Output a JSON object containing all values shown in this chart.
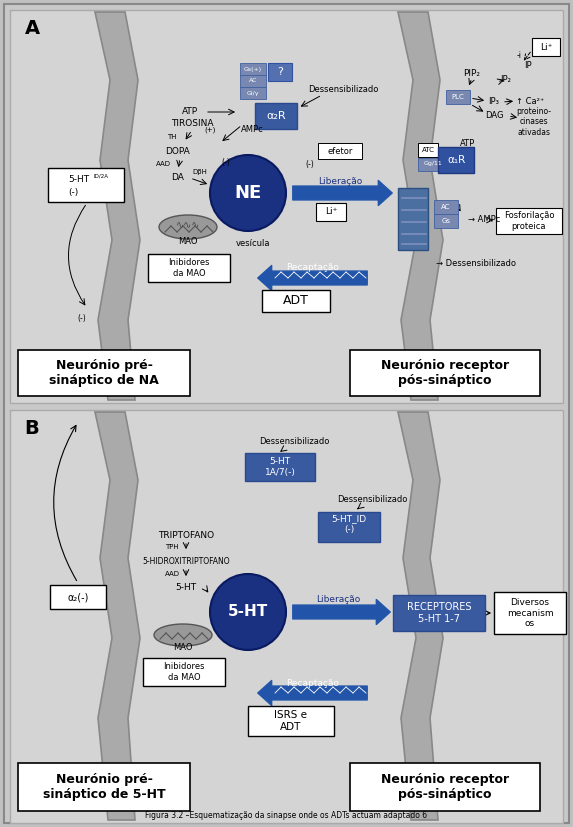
{
  "title": "Figura 3.2 –Esquematização da sinapse onde os ADTs actuam adaptado 6",
  "bg_color": "#c8c8c8",
  "panel_bg": "#d4d4d4",
  "white": "#ffffff",
  "dark_blue": "#1a3080",
  "mid_blue": "#3a5aa0",
  "light_blue": "#6080c0",
  "steel_blue": "#4a6fa0",
  "arrow_blue": "#2255aa",
  "box_blue": "#4060a0",
  "box_blue2": "#3050a0",
  "gray_blue": "#8898b8",
  "neuron_gray": "#aaaaaa",
  "neuron_edge": "#888888",
  "section_A": "A",
  "section_B": "B",
  "label_preNA": "Neurónio pré-\nsináptico de NA",
  "label_postNA": "Neurónio receptor\npós-sináptico",
  "label_pre5HT": "Neurónio pré-\nsináptico de 5-HT",
  "label_post5HT": "Neurónio receptor\npós-sináptico"
}
